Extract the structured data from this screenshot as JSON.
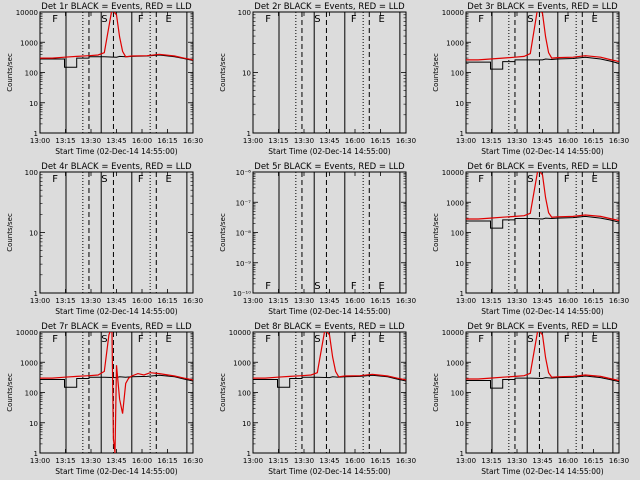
{
  "chart_data": [
    {
      "type": "line",
      "title": "Det 1r BLACK = Events, RED = LLD",
      "ylabel": "Counts/sec",
      "xlabel": "Start Time (02-Dec-14 14:55:00)",
      "yscale": "log",
      "ylim": [
        1,
        10000
      ],
      "yticks": [
        "1",
        "10",
        "100",
        "1000",
        "10000"
      ],
      "xlim": [
        "13:00",
        "16:30"
      ],
      "xticks": [
        "13:00",
        "13:15",
        "13:30",
        "13:45",
        "16:00",
        "16:15",
        "16:30"
      ],
      "letters": [
        "F",
        "S",
        "F",
        "E"
      ],
      "series": [
        {
          "name": "Events",
          "color": "#000000",
          "x": [
            0,
            0.08,
            0.16,
            0.16,
            0.24,
            0.24,
            0.32,
            0.32,
            0.42,
            0.5,
            0.52,
            0.56,
            0.6,
            0.7,
            0.78,
            0.88,
            0.94,
            1.0
          ],
          "y": [
            280,
            280,
            280,
            150,
            150,
            300,
            300,
            330,
            330,
            320,
            340,
            330,
            340,
            350,
            380,
            330,
            290,
            250
          ]
        },
        {
          "name": "LLD",
          "color": "#e00000",
          "x": [
            0,
            0.08,
            0.16,
            0.24,
            0.32,
            0.38,
            0.42,
            0.47,
            0.5,
            0.52,
            0.54,
            0.56,
            0.6,
            0.7,
            0.78,
            0.88,
            0.94,
            1.0
          ],
          "y": [
            300,
            300,
            320,
            340,
            360,
            380,
            450,
            12000,
            8000,
            1500,
            500,
            330,
            350,
            360,
            400,
            350,
            300,
            260
          ]
        }
      ]
    },
    {
      "type": "line",
      "title": "Det 2r BLACK = Events, RED = LLD",
      "ylabel": "Counts/sec",
      "xlabel": "Start Time (02-Dec-14 14:55:00)",
      "yscale": "log",
      "ylim": [
        1,
        100
      ],
      "yticks": [
        "1",
        "10",
        "100"
      ],
      "xlim": [
        "13:00",
        "16:30"
      ],
      "xticks": [
        "13:00",
        "13:15",
        "13:30",
        "13:45",
        "16:00",
        "16:15",
        "16:30"
      ],
      "letters": [
        "F",
        "S",
        "F",
        "E"
      ],
      "series": []
    },
    {
      "type": "line",
      "title": "Det 3r BLACK = Events, RED = LLD",
      "ylabel": "Counts/sec",
      "xlabel": "Start Time (02-Dec-14 14:55:00)",
      "yscale": "log",
      "ylim": [
        1,
        10000
      ],
      "yticks": [
        "1",
        "10",
        "100",
        "1000",
        "10000"
      ],
      "xlim": [
        "13:00",
        "16:30"
      ],
      "xticks": [
        "13:00",
        "13:15",
        "13:30",
        "13:45",
        "16:00",
        "16:15",
        "16:30"
      ],
      "letters": [
        "F",
        "S",
        "F",
        "E"
      ],
      "series": [
        {
          "name": "Events",
          "color": "#000000",
          "x": [
            0,
            0.08,
            0.16,
            0.16,
            0.24,
            0.24,
            0.32,
            0.32,
            0.42,
            0.5,
            0.52,
            0.56,
            0.6,
            0.7,
            0.78,
            0.88,
            0.94,
            1.0
          ],
          "y": [
            220,
            220,
            220,
            130,
            130,
            230,
            230,
            260,
            260,
            260,
            280,
            270,
            280,
            290,
            320,
            280,
            240,
            200
          ]
        },
        {
          "name": "LLD",
          "color": "#e00000",
          "x": [
            0,
            0.08,
            0.16,
            0.24,
            0.32,
            0.38,
            0.42,
            0.47,
            0.5,
            0.52,
            0.54,
            0.56,
            0.6,
            0.7,
            0.78,
            0.88,
            0.94,
            1.0
          ],
          "y": [
            260,
            260,
            280,
            300,
            320,
            340,
            420,
            15000,
            9000,
            1500,
            450,
            300,
            310,
            320,
            360,
            320,
            270,
            230
          ]
        }
      ]
    },
    {
      "type": "line",
      "title": "Det 4r BLACK = Events, RED = LLD",
      "ylabel": "Counts/sec",
      "xlabel": "Start Time (02-Dec-14 14:55:00)",
      "yscale": "log",
      "ylim": [
        1,
        100
      ],
      "yticks": [
        "1",
        "10",
        "100"
      ],
      "xlim": [
        "13:00",
        "16:30"
      ],
      "xticks": [
        "13:00",
        "13:15",
        "13:30",
        "13:45",
        "16:00",
        "16:15",
        "16:30"
      ],
      "letters": [
        "F",
        "S",
        "F",
        "E"
      ],
      "series": []
    },
    {
      "type": "line",
      "title": "Det 5r BLACK = Events, RED = LLD",
      "ylabel": "Counts/sec",
      "xlabel": "Start Time (02-Dec-14 14:55:00)",
      "yscale": "log",
      "ylim": [
        1e-10,
        1e-06
      ],
      "yticks": [
        "10⁻¹⁰",
        "10⁻⁹",
        "10⁻⁸",
        "10⁻⁷",
        "10⁻⁶"
      ],
      "xlim": [
        "13:00",
        "16:30"
      ],
      "xticks": [
        "13:00",
        "13:15",
        "13:30",
        "13:45",
        "16:00",
        "16:15",
        "16:30"
      ],
      "letters": [
        "F",
        "S",
        "F",
        "E"
      ],
      "letters_pos": "bottom",
      "series": []
    },
    {
      "type": "line",
      "title": "Det 6r BLACK = Events, RED = LLD",
      "ylabel": "Counts/sec",
      "xlabel": "Start Time (02-Dec-14 14:55:00)",
      "yscale": "log",
      "ylim": [
        1,
        10000
      ],
      "yticks": [
        "1",
        "10",
        "100",
        "1000",
        "10000"
      ],
      "xlim": [
        "13:00",
        "16:30"
      ],
      "xticks": [
        "13:00",
        "13:15",
        "13:30",
        "13:45",
        "16:00",
        "16:15",
        "16:30"
      ],
      "letters": [
        "F",
        "S",
        "F",
        "E"
      ],
      "series": [
        {
          "name": "Events",
          "color": "#000000",
          "x": [
            0,
            0.08,
            0.16,
            0.16,
            0.24,
            0.24,
            0.32,
            0.32,
            0.42,
            0.5,
            0.52,
            0.56,
            0.6,
            0.7,
            0.78,
            0.88,
            0.94,
            1.0
          ],
          "y": [
            240,
            240,
            240,
            140,
            140,
            260,
            260,
            290,
            290,
            280,
            300,
            290,
            300,
            310,
            340,
            300,
            260,
            220
          ]
        },
        {
          "name": "LLD",
          "color": "#e00000",
          "x": [
            0,
            0.08,
            0.16,
            0.24,
            0.32,
            0.38,
            0.42,
            0.47,
            0.5,
            0.52,
            0.54,
            0.56,
            0.6,
            0.7,
            0.78,
            0.88,
            0.94,
            1.0
          ],
          "y": [
            280,
            280,
            300,
            320,
            340,
            360,
            430,
            12000,
            8000,
            1400,
            450,
            320,
            330,
            340,
            380,
            340,
            290,
            250
          ]
        }
      ]
    },
    {
      "type": "line",
      "title": "Det 7r BLACK = Events, RED = LLD",
      "ylabel": "Counts/sec",
      "xlabel": "Start Time (02-Dec-14 14:55:00)",
      "yscale": "log",
      "ylim": [
        1,
        10000
      ],
      "yticks": [
        "1",
        "10",
        "100",
        "1000",
        "10000"
      ],
      "xlim": [
        "13:00",
        "16:30"
      ],
      "xticks": [
        "13:00",
        "13:15",
        "13:30",
        "13:45",
        "16:00",
        "16:15",
        "16:30"
      ],
      "letters": [
        "F",
        "S",
        "F",
        "E"
      ],
      "series": [
        {
          "name": "Events",
          "color": "#000000",
          "x": [
            0,
            0.08,
            0.16,
            0.16,
            0.24,
            0.24,
            0.32,
            0.32,
            0.42,
            0.5,
            0.52,
            0.56,
            0.6,
            0.7,
            0.78,
            0.88,
            0.94,
            1.0
          ],
          "y": [
            270,
            270,
            270,
            150,
            150,
            290,
            290,
            320,
            320,
            310,
            330,
            320,
            330,
            340,
            370,
            330,
            280,
            240
          ]
        },
        {
          "name": "LLD",
          "color": "#e00000",
          "x": [
            0,
            0.08,
            0.16,
            0.24,
            0.32,
            0.38,
            0.42,
            0.45,
            0.47,
            0.48,
            0.49,
            0.5,
            0.52,
            0.54,
            0.56,
            0.58,
            0.6,
            0.64,
            0.68,
            0.72,
            0.78,
            0.88,
            0.94,
            1.0
          ],
          "y": [
            300,
            300,
            320,
            340,
            360,
            380,
            500,
            8000,
            15000,
            3,
            1,
            800,
            60,
            20,
            200,
            300,
            350,
            420,
            380,
            450,
            420,
            350,
            300,
            260
          ]
        }
      ]
    },
    {
      "type": "line",
      "title": "Det 8r BLACK = Events, RED = LLD",
      "ylabel": "Counts/sec",
      "xlabel": "Start Time (02-Dec-14 14:55:00)",
      "yscale": "log",
      "ylim": [
        1,
        10000
      ],
      "yticks": [
        "1",
        "10",
        "100",
        "1000",
        "10000"
      ],
      "xlim": [
        "13:00",
        "16:30"
      ],
      "xticks": [
        "13:00",
        "13:15",
        "13:30",
        "13:45",
        "16:00",
        "16:15",
        "16:30"
      ],
      "letters": [
        "F",
        "S",
        "F",
        "E"
      ],
      "series": [
        {
          "name": "Events",
          "color": "#000000",
          "x": [
            0,
            0.08,
            0.16,
            0.16,
            0.24,
            0.24,
            0.32,
            0.32,
            0.42,
            0.5,
            0.52,
            0.56,
            0.6,
            0.7,
            0.78,
            0.88,
            0.94,
            1.0
          ],
          "y": [
            270,
            270,
            270,
            150,
            150,
            290,
            290,
            320,
            320,
            310,
            330,
            320,
            330,
            340,
            370,
            330,
            280,
            240
          ]
        },
        {
          "name": "LLD",
          "color": "#e00000",
          "x": [
            0,
            0.08,
            0.16,
            0.24,
            0.32,
            0.38,
            0.42,
            0.47,
            0.5,
            0.52,
            0.54,
            0.56,
            0.6,
            0.7,
            0.78,
            0.88,
            0.94,
            1.0
          ],
          "y": [
            300,
            300,
            320,
            340,
            360,
            380,
            450,
            12000,
            8000,
            1500,
            500,
            330,
            350,
            360,
            400,
            350,
            300,
            260
          ]
        }
      ]
    },
    {
      "type": "line",
      "title": "Det 9r BLACK = Events, RED = LLD",
      "ylabel": "Counts/sec",
      "xlabel": "Start Time (02-Dec-14 14:55:00)",
      "yscale": "log",
      "ylim": [
        1,
        10000
      ],
      "yticks": [
        "1",
        "10",
        "100",
        "1000",
        "10000"
      ],
      "xlim": [
        "13:00",
        "16:30"
      ],
      "xticks": [
        "13:00",
        "13:15",
        "13:30",
        "13:45",
        "16:00",
        "16:15",
        "16:30"
      ],
      "letters": [
        "F",
        "S",
        "F",
        "E"
      ],
      "series": [
        {
          "name": "Events",
          "color": "#000000",
          "x": [
            0,
            0.08,
            0.16,
            0.16,
            0.24,
            0.24,
            0.32,
            0.32,
            0.42,
            0.5,
            0.52,
            0.56,
            0.6,
            0.7,
            0.78,
            0.88,
            0.94,
            1.0
          ],
          "y": [
            250,
            250,
            250,
            140,
            140,
            270,
            270,
            300,
            300,
            290,
            310,
            300,
            310,
            320,
            350,
            310,
            270,
            230
          ]
        },
        {
          "name": "LLD",
          "color": "#e00000",
          "x": [
            0,
            0.08,
            0.16,
            0.24,
            0.32,
            0.38,
            0.42,
            0.47,
            0.5,
            0.52,
            0.54,
            0.56,
            0.6,
            0.7,
            0.78,
            0.88,
            0.94,
            1.0
          ],
          "y": [
            280,
            280,
            300,
            320,
            340,
            360,
            430,
            12000,
            8000,
            1400,
            450,
            320,
            330,
            340,
            380,
            340,
            290,
            250
          ]
        }
      ]
    }
  ]
}
